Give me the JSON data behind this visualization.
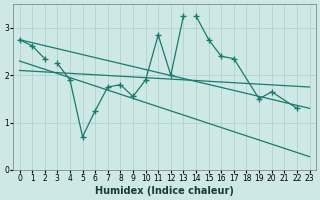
{
  "xlabel": "Humidex (Indice chaleur)",
  "bg_color": "#cde8e5",
  "grid_color": "#aacfcc",
  "line_color": "#1a7a6e",
  "ylim": [
    0,
    3.5
  ],
  "xlim": [
    -0.5,
    23.5
  ],
  "yticks": [
    0,
    1,
    2,
    3
  ],
  "xticks": [
    0,
    1,
    2,
    3,
    4,
    5,
    6,
    7,
    8,
    9,
    10,
    11,
    12,
    13,
    14,
    15,
    16,
    17,
    18,
    19,
    20,
    21,
    22,
    23
  ],
  "upper_x": [
    0,
    1,
    2,
    14,
    15,
    16,
    17,
    19,
    20,
    22
  ],
  "upper_y": [
    2.75,
    2.62,
    2.35,
    3.25,
    2.75,
    2.4,
    2.35,
    1.5,
    1.65,
    1.3
  ],
  "lower_x": [
    3,
    4,
    5,
    6,
    7,
    8,
    9,
    10,
    11,
    12,
    13
  ],
  "lower_y": [
    2.25,
    1.9,
    0.7,
    1.25,
    1.75,
    1.8,
    1.55,
    1.9,
    2.85,
    2.0,
    3.25
  ],
  "trend1_x": [
    0,
    23
  ],
  "trend1_y": [
    2.75,
    1.3
  ],
  "trend2_x": [
    0,
    23
  ],
  "trend2_y": [
    2.3,
    0.28
  ],
  "trend3_x": [
    0,
    23
  ],
  "trend3_y": [
    2.1,
    1.75
  ]
}
